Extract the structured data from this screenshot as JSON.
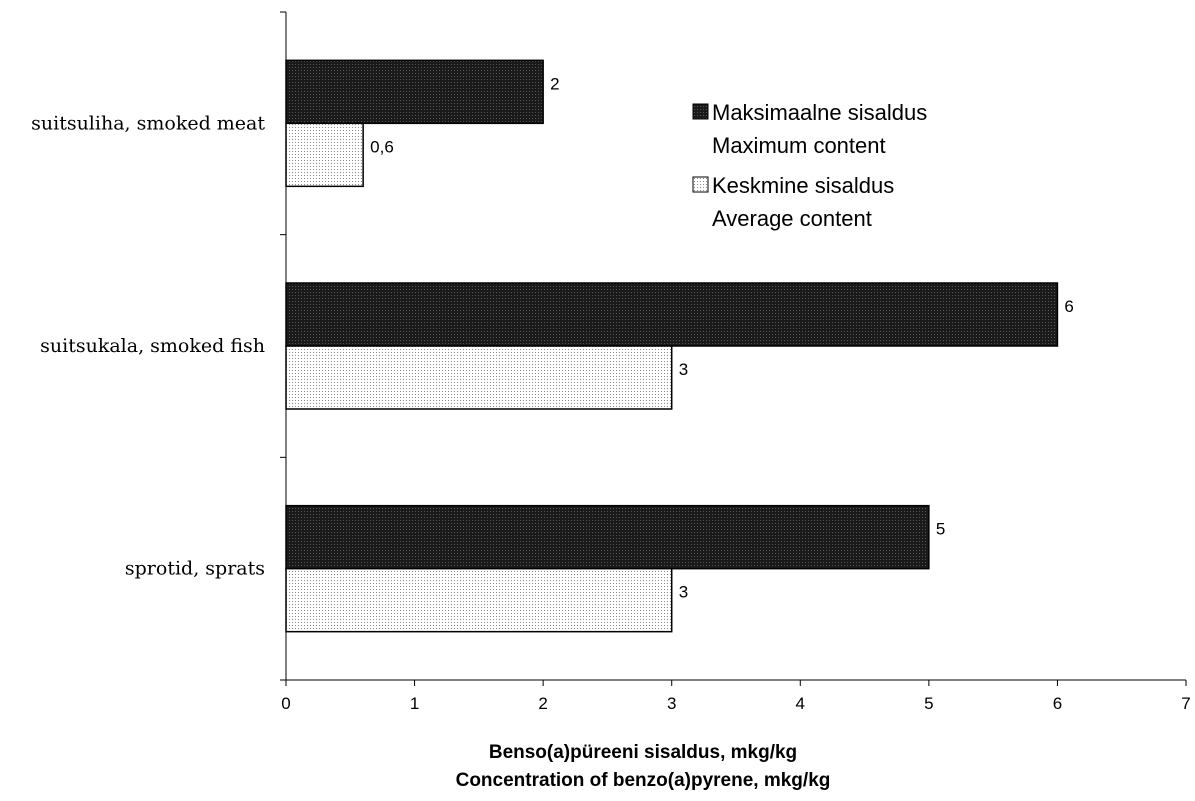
{
  "chart_data": {
    "type": "bar",
    "orientation": "horizontal",
    "categories": [
      "suitsuliha, smoked meat",
      "suitsukala, smoked fish",
      "sprotid, sprats"
    ],
    "series": [
      {
        "name": "Maksimaalne sisaldus",
        "name_en": "Maximum content",
        "values": [
          2,
          6,
          5
        ],
        "labels": [
          "2",
          "6",
          "5"
        ],
        "color": "#111111",
        "pattern": "dark-dots"
      },
      {
        "name": "Keskmine sisaldus",
        "name_en": "Average content",
        "values": [
          0.6,
          3,
          3
        ],
        "labels": [
          "0,6",
          "3",
          "3"
        ],
        "color": "#eeeeee",
        "pattern": "light-dots"
      }
    ],
    "xlabel": "Benso(a)püreeni sisaldus, mkg/kg",
    "xlabel_en": "Concentration of benzo(a)pyrene, mkg/kg",
    "xlim": [
      0,
      7
    ],
    "xticks": [
      "0",
      "1",
      "2",
      "3",
      "4",
      "5",
      "6",
      "7"
    ],
    "grid": false,
    "legend_position": "top-right"
  }
}
